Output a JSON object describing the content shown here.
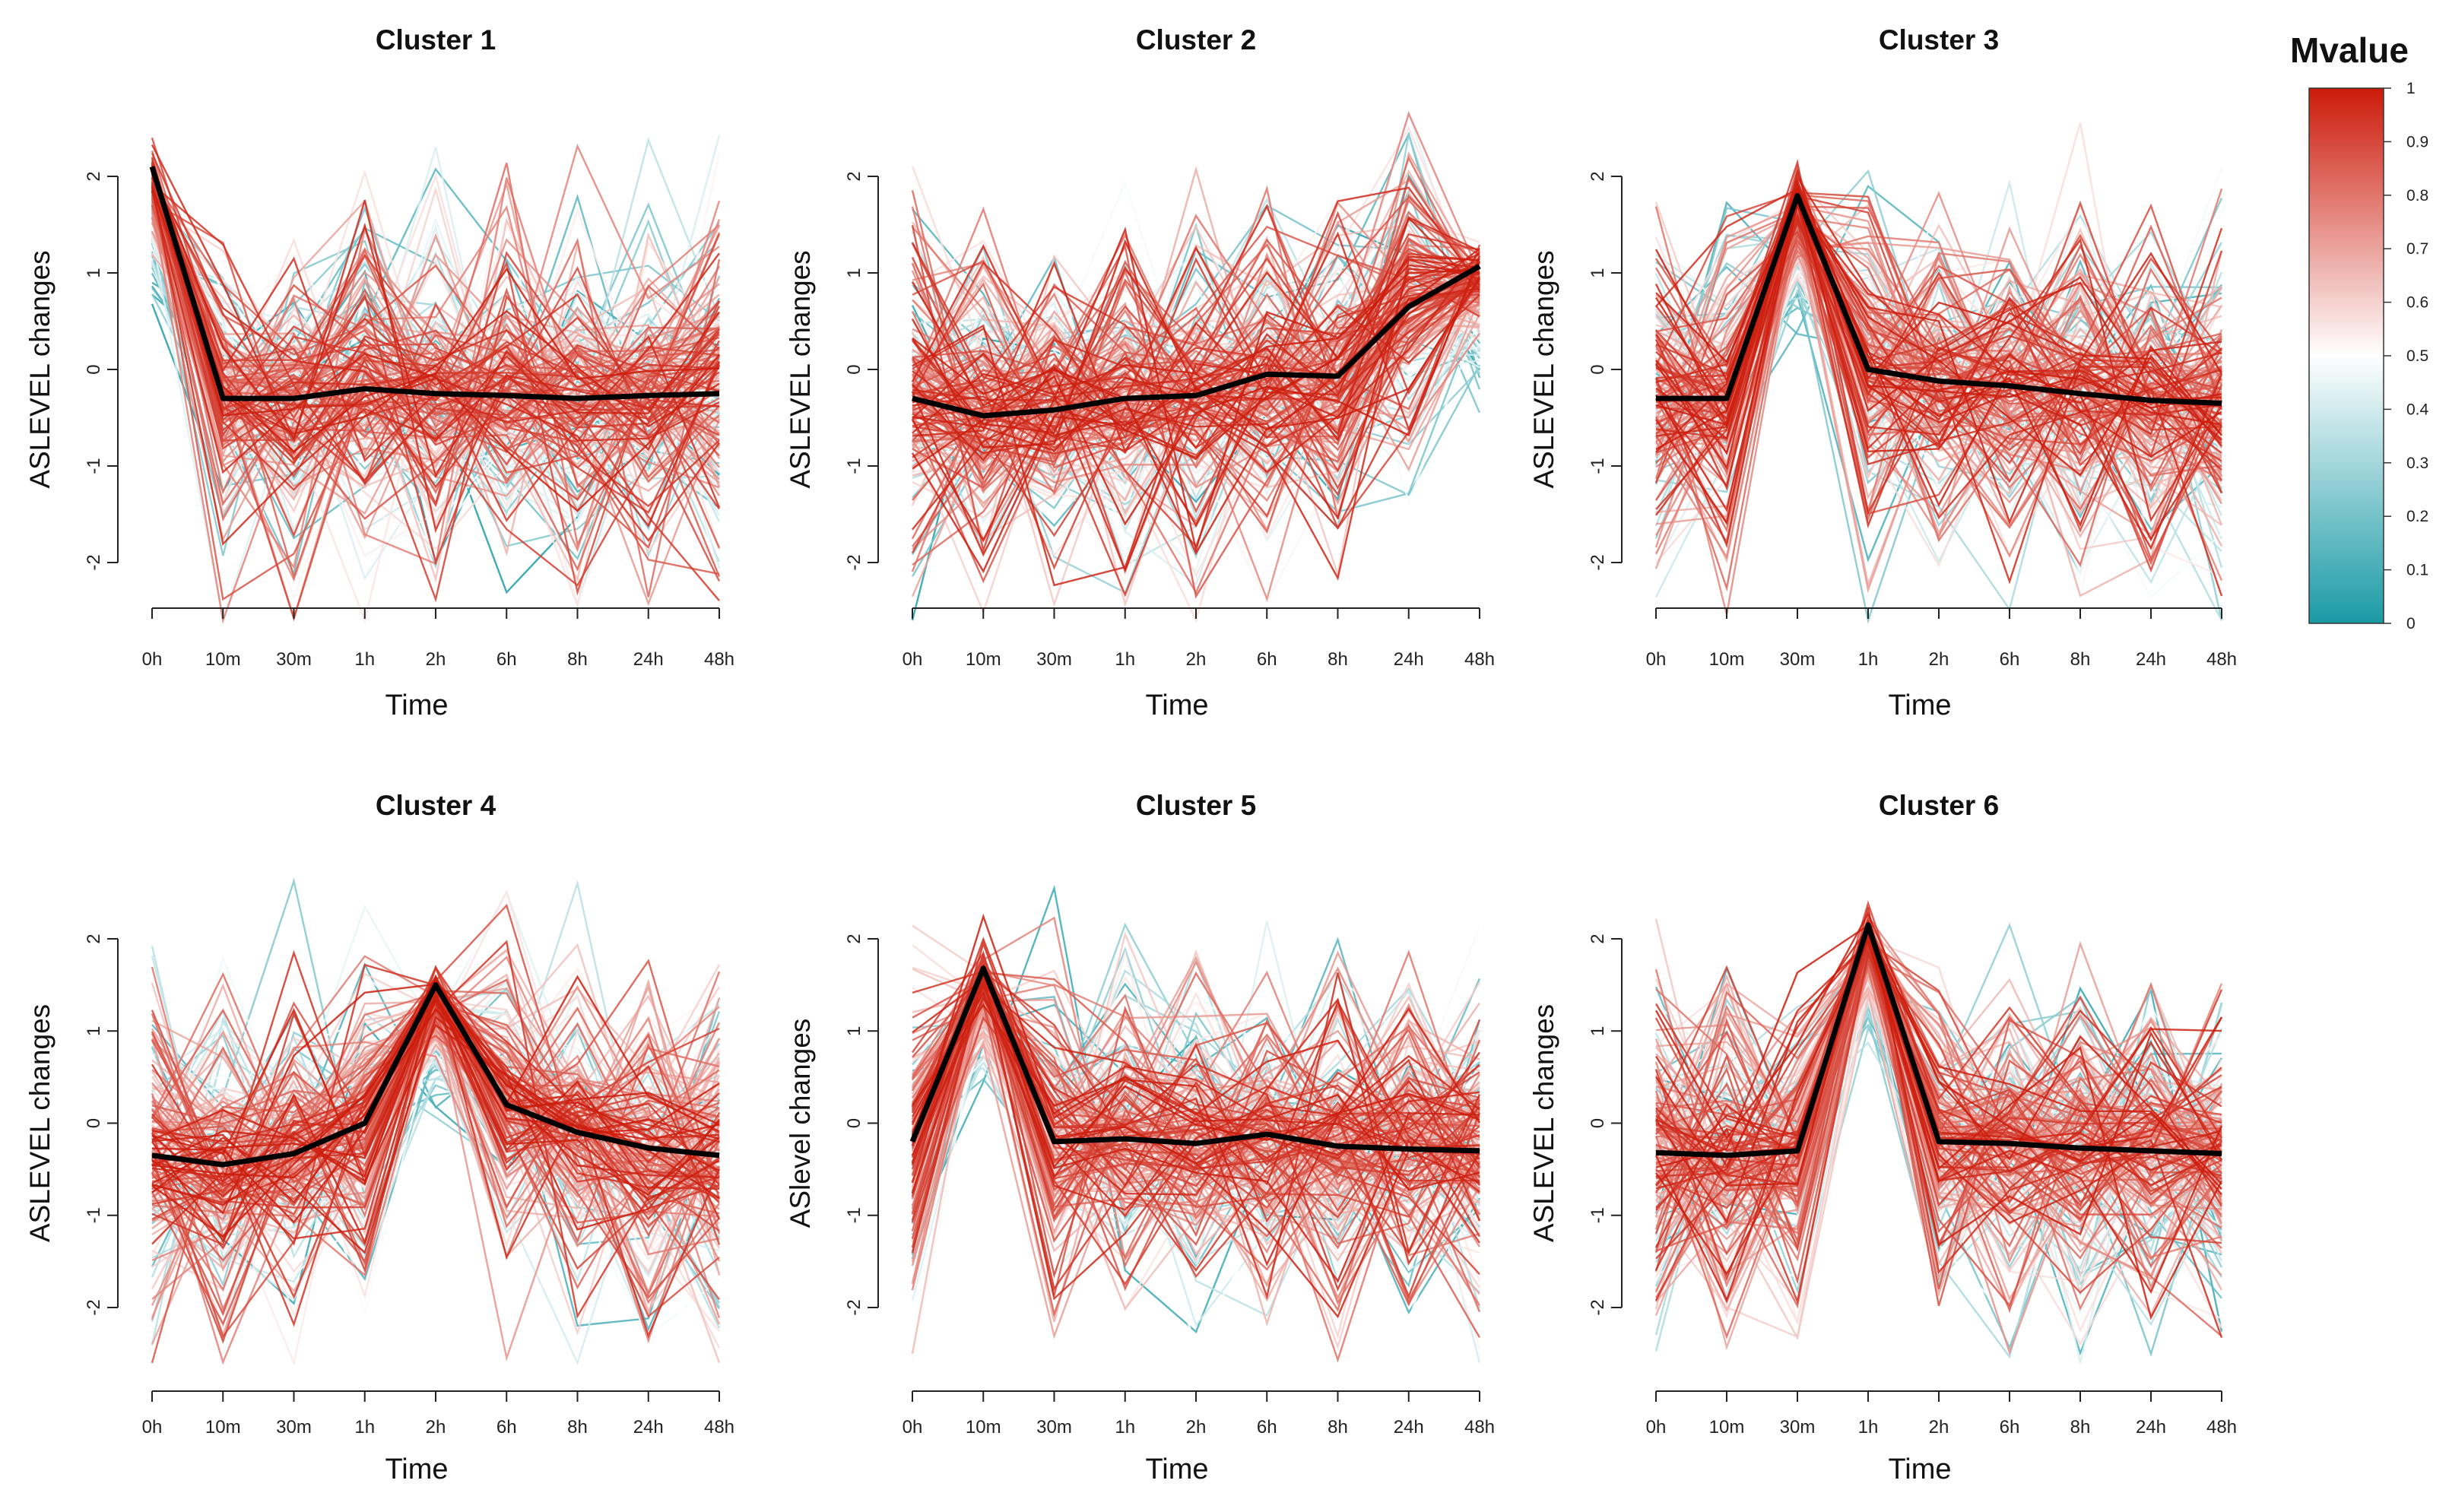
{
  "chart_data": {
    "type": "line",
    "time_points": [
      "0h",
      "10m",
      "30m",
      "1h",
      "2h",
      "6h",
      "8h",
      "24h",
      "48h"
    ],
    "ylim": [
      -2.5,
      2.5
    ],
    "yticks": [
      -2,
      -1,
      0,
      1,
      2
    ],
    "xlabel": "Time",
    "colorbar": {
      "title": "Mvalue",
      "range": [
        0,
        1
      ],
      "ticks": [
        "0",
        "0.1",
        "0.2",
        "0.3",
        "0.4",
        "0.5",
        "0.6",
        "0.7",
        "0.8",
        "0.9",
        "1"
      ],
      "low_color": "#1a9aa6",
      "mid_color": "#ffffff",
      "high_color": "#cc1a0a"
    },
    "centroid_color": "#000000",
    "panels": [
      {
        "title": "Cluster 1",
        "ylabel": "ASLEVEL changes",
        "centroid": [
          2.1,
          -0.3,
          -0.3,
          -0.2,
          -0.25,
          -0.27,
          -0.3,
          -0.27,
          -0.25
        ]
      },
      {
        "title": "Cluster 2",
        "ylabel": "ASLEVEL changes",
        "centroid": [
          -0.3,
          -0.48,
          -0.42,
          -0.3,
          -0.27,
          -0.05,
          -0.07,
          0.65,
          1.07
        ]
      },
      {
        "title": "Cluster 3",
        "ylabel": "ASLEVEL changes",
        "centroid": [
          -0.3,
          -0.3,
          1.8,
          0.0,
          -0.12,
          -0.17,
          -0.25,
          -0.32,
          -0.35
        ]
      },
      {
        "title": "Cluster 4",
        "ylabel": "ASLEVEL changes",
        "centroid": [
          -0.35,
          -0.45,
          -0.33,
          0.0,
          1.5,
          0.2,
          -0.1,
          -0.27,
          -0.35
        ]
      },
      {
        "title": "Cluster 5",
        "ylabel": "ASlevel changes",
        "centroid": [
          -0.2,
          1.68,
          -0.2,
          -0.17,
          -0.22,
          -0.12,
          -0.25,
          -0.28,
          -0.3
        ]
      },
      {
        "title": "Cluster 6",
        "ylabel": "ASLEVEL changes",
        "centroid": [
          -0.32,
          -0.35,
          -0.3,
          2.15,
          -0.2,
          -0.22,
          -0.27,
          -0.3,
          -0.33
        ]
      }
    ]
  }
}
